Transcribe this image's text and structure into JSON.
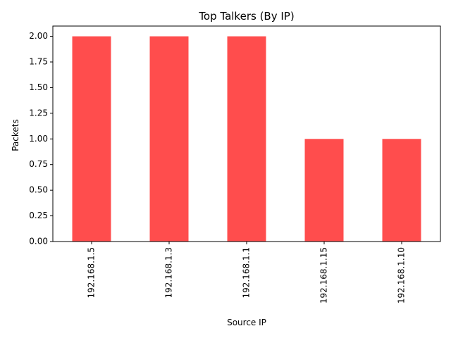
{
  "chart_data": {
    "type": "bar",
    "title": "Top Talkers (By IP)",
    "xlabel": "Source IP",
    "ylabel": "Packets",
    "categories": [
      "192.168.1.5",
      "192.168.1.3",
      "192.168.1.1",
      "192.168.1.15",
      "192.168.1.10"
    ],
    "values": [
      2,
      2,
      2,
      1,
      1
    ],
    "ylim": [
      0,
      2.1
    ],
    "yticks": [
      "0.00",
      "0.25",
      "0.50",
      "0.75",
      "1.00",
      "1.25",
      "1.50",
      "1.75",
      "2.00"
    ],
    "bar_color": "#ff4d4d",
    "grid": false,
    "legend": "none"
  }
}
